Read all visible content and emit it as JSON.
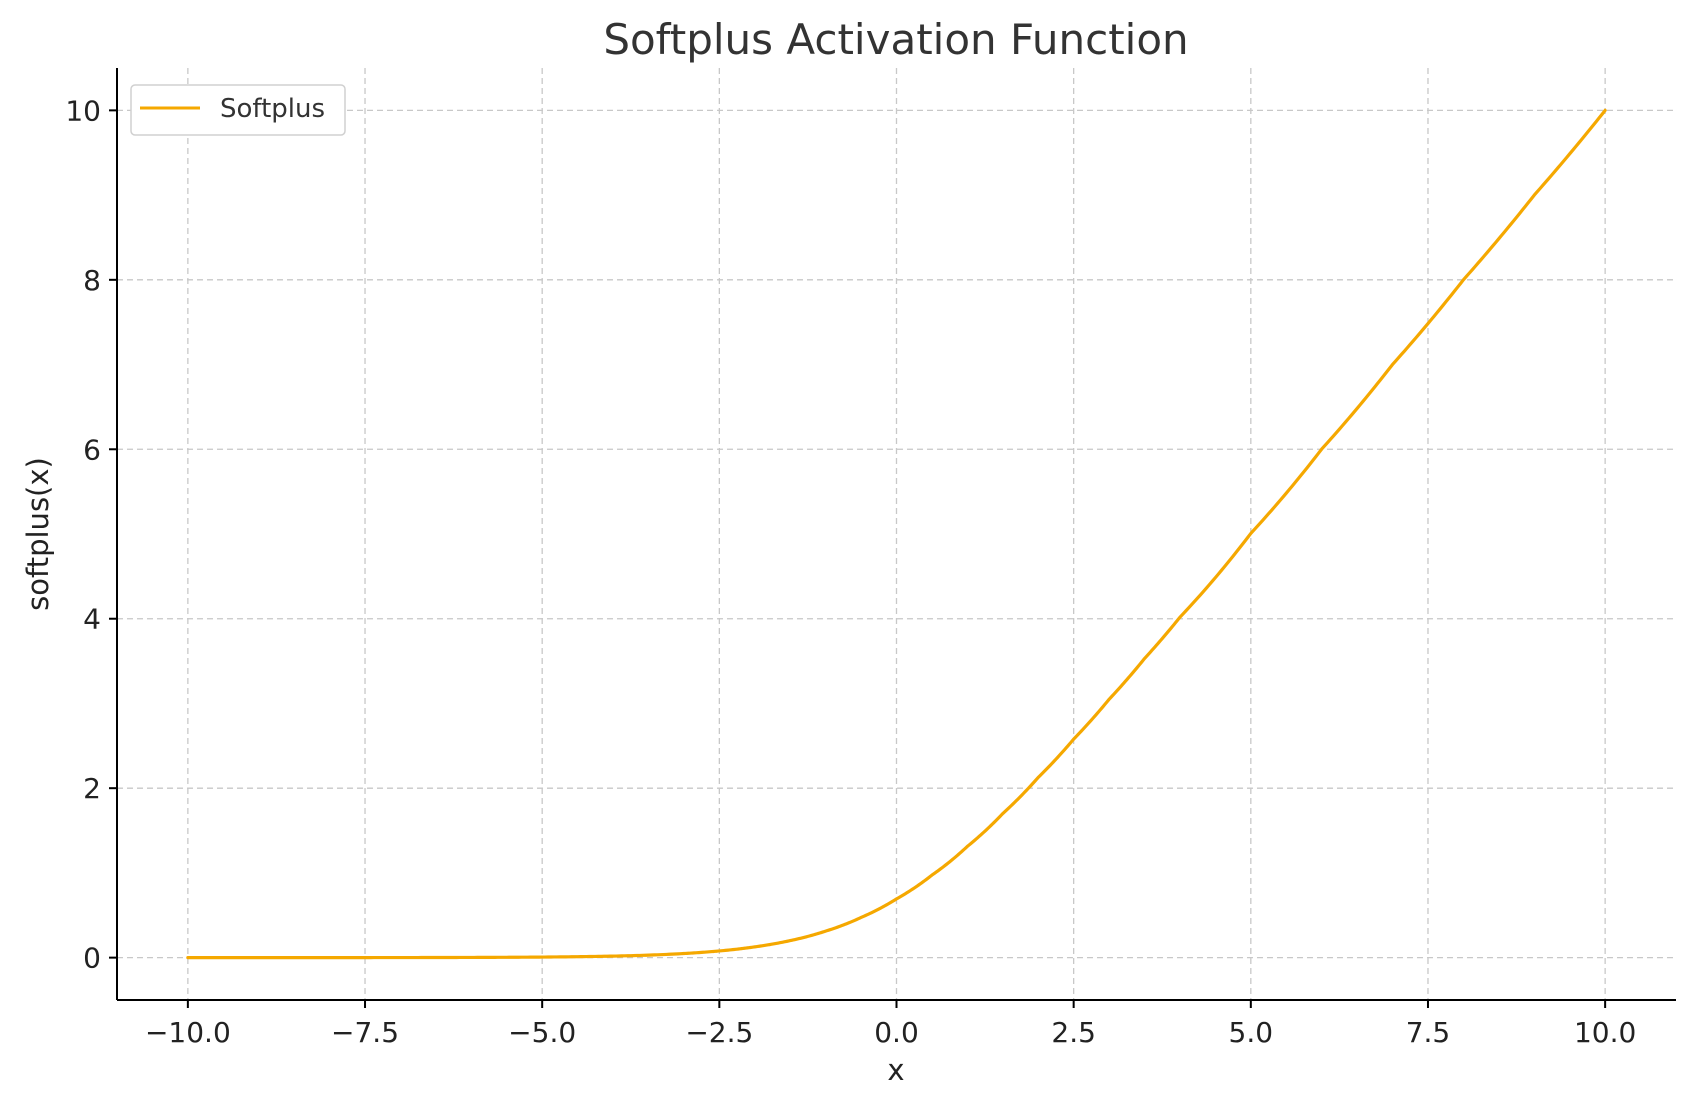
{
  "chart_data": {
    "type": "line",
    "title": "Softplus Activation Function",
    "xlabel": "x",
    "ylabel": "softplus(x)",
    "xlim": [
      -11,
      11
    ],
    "ylim": [
      -0.5,
      10.5
    ],
    "x_ticks": [
      -10.0,
      -7.5,
      -5.0,
      -2.5,
      0.0,
      2.5,
      5.0,
      7.5,
      10.0
    ],
    "x_tick_labels": [
      "−10.0",
      "−7.5",
      "−5.0",
      "−2.5",
      "0.0",
      "2.5",
      "5.0",
      "7.5",
      "10.0"
    ],
    "y_ticks": [
      0,
      2,
      4,
      6,
      8,
      10
    ],
    "y_tick_labels": [
      "0",
      "2",
      "4",
      "6",
      "8",
      "10"
    ],
    "grid": true,
    "legend_position": "top-left",
    "series": [
      {
        "name": "Softplus",
        "color": "#f5a800",
        "x": [
          -10,
          -9,
          -8,
          -7,
          -6,
          -5,
          -4,
          -3,
          -2.5,
          -2,
          -1.5,
          -1,
          -0.5,
          0,
          0.5,
          1,
          1.5,
          2,
          2.5,
          3,
          3.5,
          4,
          5,
          6,
          7,
          8,
          9,
          10
        ],
        "y": [
          4.54e-05,
          0.000123,
          0.000335,
          0.000911,
          0.00248,
          0.00672,
          0.0181,
          0.0486,
          0.0789,
          0.127,
          0.201,
          0.313,
          0.474,
          0.693,
          0.974,
          1.313,
          1.701,
          2.127,
          2.579,
          3.049,
          3.53,
          4.018,
          5.007,
          6.002,
          7.001,
          8.0,
          9.0,
          10.0
        ]
      }
    ]
  }
}
